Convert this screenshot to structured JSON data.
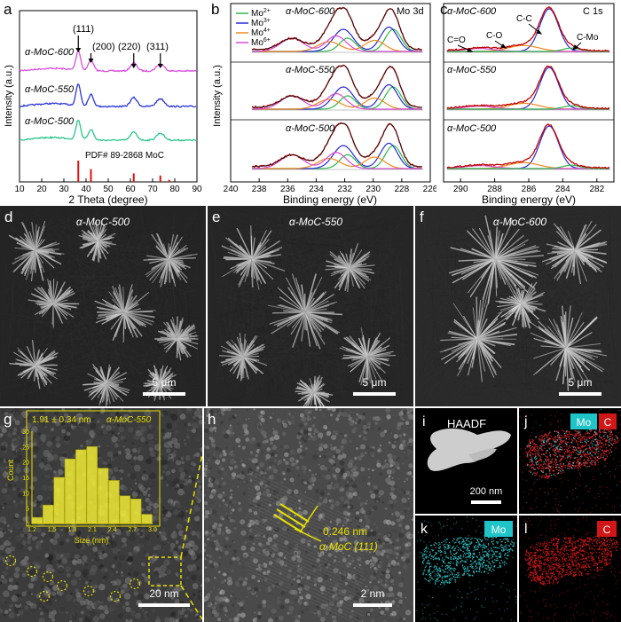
{
  "panels": {
    "a": {
      "letter": "a",
      "ylabel": "Intensity (a.u.)",
      "xlabel": "2 Theta (degree)",
      "xticks": [
        "10",
        "20",
        "30",
        "40",
        "50",
        "60",
        "70",
        "80",
        "90"
      ],
      "samples": [
        "α-MoC-600",
        "α-MoC-550",
        "α-MoC-500"
      ],
      "peaks": [
        "(111)",
        "(200)",
        "(220)",
        "(311)"
      ],
      "reference": "PDF# 89-2868 MoC"
    },
    "b": {
      "letter": "b",
      "ylabel": "Intensity (a.u.)",
      "xlabel": "Binding energy (eV)",
      "xticks": [
        "240",
        "238",
        "236",
        "234",
        "232",
        "230",
        "228",
        "226"
      ],
      "title": "Mo 3d",
      "samples": [
        "α-MoC-600",
        "α-MoC-550",
        "α-MoC-500"
      ],
      "legend": [
        {
          "base": "Mo",
          "sup": "2+",
          "color": "#2db84b"
        },
        {
          "base": "Mo",
          "sup": "3+",
          "color": "#2a2ad8"
        },
        {
          "base": "Mo",
          "sup": "4+",
          "color": "#f08a1e"
        },
        {
          "base": "Mo",
          "sup": "6+",
          "color": "#d74bd7"
        }
      ]
    },
    "c": {
      "letter": "c",
      "xlabel": "Binding energy (eV)",
      "xticks": [
        "290",
        "288",
        "286",
        "284",
        "282"
      ],
      "title": "C 1s",
      "samples": [
        "α-MoC-600",
        "α-MoC-550",
        "α-MoC-500"
      ],
      "annotations": [
        "C=O",
        "C-O",
        "C-C",
        "C-Mo"
      ]
    },
    "d": {
      "letter": "d",
      "label": "α-MoC-500",
      "scale": "5 μm"
    },
    "e": {
      "letter": "e",
      "label": "α-MoC-550",
      "scale": "5 μm"
    },
    "f": {
      "letter": "f",
      "label": "α-MoC-600",
      "scale": "5 μm"
    },
    "g": {
      "letter": "g",
      "scale": "20 nm",
      "inset_title": "1.91 ± 0.34 nm",
      "inset_sample": "α-MoC-550",
      "inset_ylabel": "Count",
      "inset_xlabel": "Size (nm)",
      "inset_xticks": [
        "1.2",
        "1.5",
        "1.8",
        "2.1",
        "2.4",
        "2.7",
        "3.0"
      ],
      "inset_yticks": [
        "0",
        "5",
        "10",
        "15",
        "20",
        "25",
        "30"
      ]
    },
    "h": {
      "letter": "h",
      "spacing": "0.246 nm",
      "plane": "α-MoC (111)",
      "scale": "2 nm"
    },
    "i": {
      "letter": "i",
      "label": "HAADF",
      "scale": "200 nm"
    },
    "j": {
      "letter": "j",
      "tags": [
        "Mo",
        "C"
      ]
    },
    "k": {
      "letter": "k",
      "tag": "Mo"
    },
    "l": {
      "letter": "l",
      "tag": "C"
    }
  },
  "chart_data": [
    {
      "type": "line",
      "title": "",
      "xlabel": "2 Theta (degree)",
      "ylabel": "Intensity (a.u.)",
      "xlim": [
        10,
        90
      ],
      "series": [
        {
          "name": "α-MoC-600",
          "color": "#d94fe0"
        },
        {
          "name": "α-MoC-550",
          "color": "#2a35d8"
        },
        {
          "name": "α-MoC-500",
          "color": "#27c68a"
        }
      ],
      "peak_positions": [
        36.5,
        42.2,
        61.5,
        73.5
      ],
      "peak_labels": [
        "(111)",
        "(200)",
        "(220)",
        "(311)"
      ],
      "reference_lines": {
        "name": "PDF# 89-2868 MoC",
        "x": [
          36.5,
          42.2,
          61.5,
          73.5,
          77.5
        ],
        "height": [
          1.0,
          0.6,
          0.4,
          0.3,
          0.1
        ]
      }
    },
    {
      "type": "line",
      "title": "Mo 3d",
      "xlabel": "Binding energy (eV)",
      "ylabel": "Intensity (a.u.)",
      "xlim": [
        240,
        226
      ],
      "components": [
        {
          "name": "Mo2+",
          "color": "#2db84b"
        },
        {
          "name": "Mo3+",
          "color": "#2a2ad8"
        },
        {
          "name": "Mo4+",
          "color": "#f08a1e"
        },
        {
          "name": "Mo6+",
          "color": "#d74bd7"
        }
      ],
      "samples": [
        "α-MoC-600",
        "α-MoC-550",
        "α-MoC-500"
      ]
    },
    {
      "type": "line",
      "title": "C 1s",
      "xlabel": "Binding energy (eV)",
      "xlim": [
        291,
        281
      ],
      "components": [
        "C=O",
        "C-O",
        "C-C",
        "C-Mo"
      ],
      "samples": [
        "α-MoC-600",
        "α-MoC-550",
        "α-MoC-500"
      ]
    },
    {
      "type": "bar",
      "title": "1.91 ± 0.34 nm",
      "xlabel": "Size (nm)",
      "ylabel": "Count",
      "categories": [
        "1.35",
        "1.50",
        "1.65",
        "1.80",
        "1.95",
        "2.10",
        "2.25",
        "2.40",
        "2.55",
        "2.70",
        "2.85"
      ],
      "values": [
        2,
        6,
        15,
        21,
        24,
        25,
        18,
        14,
        9,
        8,
        3
      ],
      "ylim": [
        0,
        30
      ]
    }
  ]
}
